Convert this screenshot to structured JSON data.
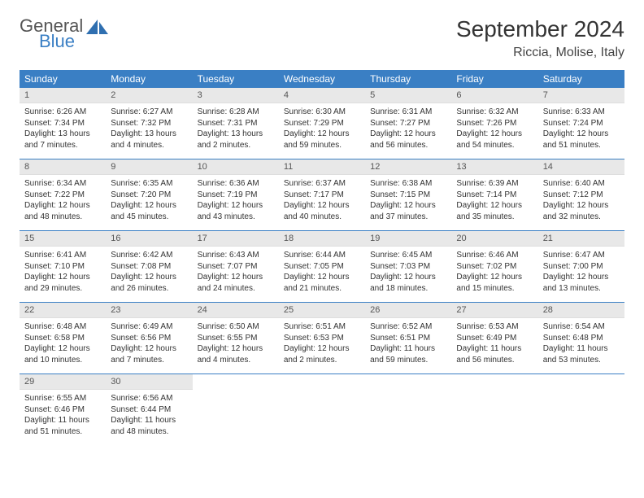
{
  "logo": {
    "text1": "General",
    "text2": "Blue"
  },
  "title": "September 2024",
  "location": "Riccia, Molise, Italy",
  "colors": {
    "header_bg": "#3a7fc4",
    "header_text": "#ffffff",
    "daynum_bg": "#e8e8e8",
    "row_border": "#3a7fc4",
    "body_text": "#333333"
  },
  "dow": [
    "Sunday",
    "Monday",
    "Tuesday",
    "Wednesday",
    "Thursday",
    "Friday",
    "Saturday"
  ],
  "days": [
    {
      "n": "1",
      "sr": "6:26 AM",
      "ss": "7:34 PM",
      "dl": "13 hours and 7 minutes."
    },
    {
      "n": "2",
      "sr": "6:27 AM",
      "ss": "7:32 PM",
      "dl": "13 hours and 4 minutes."
    },
    {
      "n": "3",
      "sr": "6:28 AM",
      "ss": "7:31 PM",
      "dl": "13 hours and 2 minutes."
    },
    {
      "n": "4",
      "sr": "6:30 AM",
      "ss": "7:29 PM",
      "dl": "12 hours and 59 minutes."
    },
    {
      "n": "5",
      "sr": "6:31 AM",
      "ss": "7:27 PM",
      "dl": "12 hours and 56 minutes."
    },
    {
      "n": "6",
      "sr": "6:32 AM",
      "ss": "7:26 PM",
      "dl": "12 hours and 54 minutes."
    },
    {
      "n": "7",
      "sr": "6:33 AM",
      "ss": "7:24 PM",
      "dl": "12 hours and 51 minutes."
    },
    {
      "n": "8",
      "sr": "6:34 AM",
      "ss": "7:22 PM",
      "dl": "12 hours and 48 minutes."
    },
    {
      "n": "9",
      "sr": "6:35 AM",
      "ss": "7:20 PM",
      "dl": "12 hours and 45 minutes."
    },
    {
      "n": "10",
      "sr": "6:36 AM",
      "ss": "7:19 PM",
      "dl": "12 hours and 43 minutes."
    },
    {
      "n": "11",
      "sr": "6:37 AM",
      "ss": "7:17 PM",
      "dl": "12 hours and 40 minutes."
    },
    {
      "n": "12",
      "sr": "6:38 AM",
      "ss": "7:15 PM",
      "dl": "12 hours and 37 minutes."
    },
    {
      "n": "13",
      "sr": "6:39 AM",
      "ss": "7:14 PM",
      "dl": "12 hours and 35 minutes."
    },
    {
      "n": "14",
      "sr": "6:40 AM",
      "ss": "7:12 PM",
      "dl": "12 hours and 32 minutes."
    },
    {
      "n": "15",
      "sr": "6:41 AM",
      "ss": "7:10 PM",
      "dl": "12 hours and 29 minutes."
    },
    {
      "n": "16",
      "sr": "6:42 AM",
      "ss": "7:08 PM",
      "dl": "12 hours and 26 minutes."
    },
    {
      "n": "17",
      "sr": "6:43 AM",
      "ss": "7:07 PM",
      "dl": "12 hours and 24 minutes."
    },
    {
      "n": "18",
      "sr": "6:44 AM",
      "ss": "7:05 PM",
      "dl": "12 hours and 21 minutes."
    },
    {
      "n": "19",
      "sr": "6:45 AM",
      "ss": "7:03 PM",
      "dl": "12 hours and 18 minutes."
    },
    {
      "n": "20",
      "sr": "6:46 AM",
      "ss": "7:02 PM",
      "dl": "12 hours and 15 minutes."
    },
    {
      "n": "21",
      "sr": "6:47 AM",
      "ss": "7:00 PM",
      "dl": "12 hours and 13 minutes."
    },
    {
      "n": "22",
      "sr": "6:48 AM",
      "ss": "6:58 PM",
      "dl": "12 hours and 10 minutes."
    },
    {
      "n": "23",
      "sr": "6:49 AM",
      "ss": "6:56 PM",
      "dl": "12 hours and 7 minutes."
    },
    {
      "n": "24",
      "sr": "6:50 AM",
      "ss": "6:55 PM",
      "dl": "12 hours and 4 minutes."
    },
    {
      "n": "25",
      "sr": "6:51 AM",
      "ss": "6:53 PM",
      "dl": "12 hours and 2 minutes."
    },
    {
      "n": "26",
      "sr": "6:52 AM",
      "ss": "6:51 PM",
      "dl": "11 hours and 59 minutes."
    },
    {
      "n": "27",
      "sr": "6:53 AM",
      "ss": "6:49 PM",
      "dl": "11 hours and 56 minutes."
    },
    {
      "n": "28",
      "sr": "6:54 AM",
      "ss": "6:48 PM",
      "dl": "11 hours and 53 minutes."
    },
    {
      "n": "29",
      "sr": "6:55 AM",
      "ss": "6:46 PM",
      "dl": "11 hours and 51 minutes."
    },
    {
      "n": "30",
      "sr": "6:56 AM",
      "ss": "6:44 PM",
      "dl": "11 hours and 48 minutes."
    }
  ],
  "labels": {
    "sunrise": "Sunrise:",
    "sunset": "Sunset:",
    "daylight": "Daylight:"
  }
}
